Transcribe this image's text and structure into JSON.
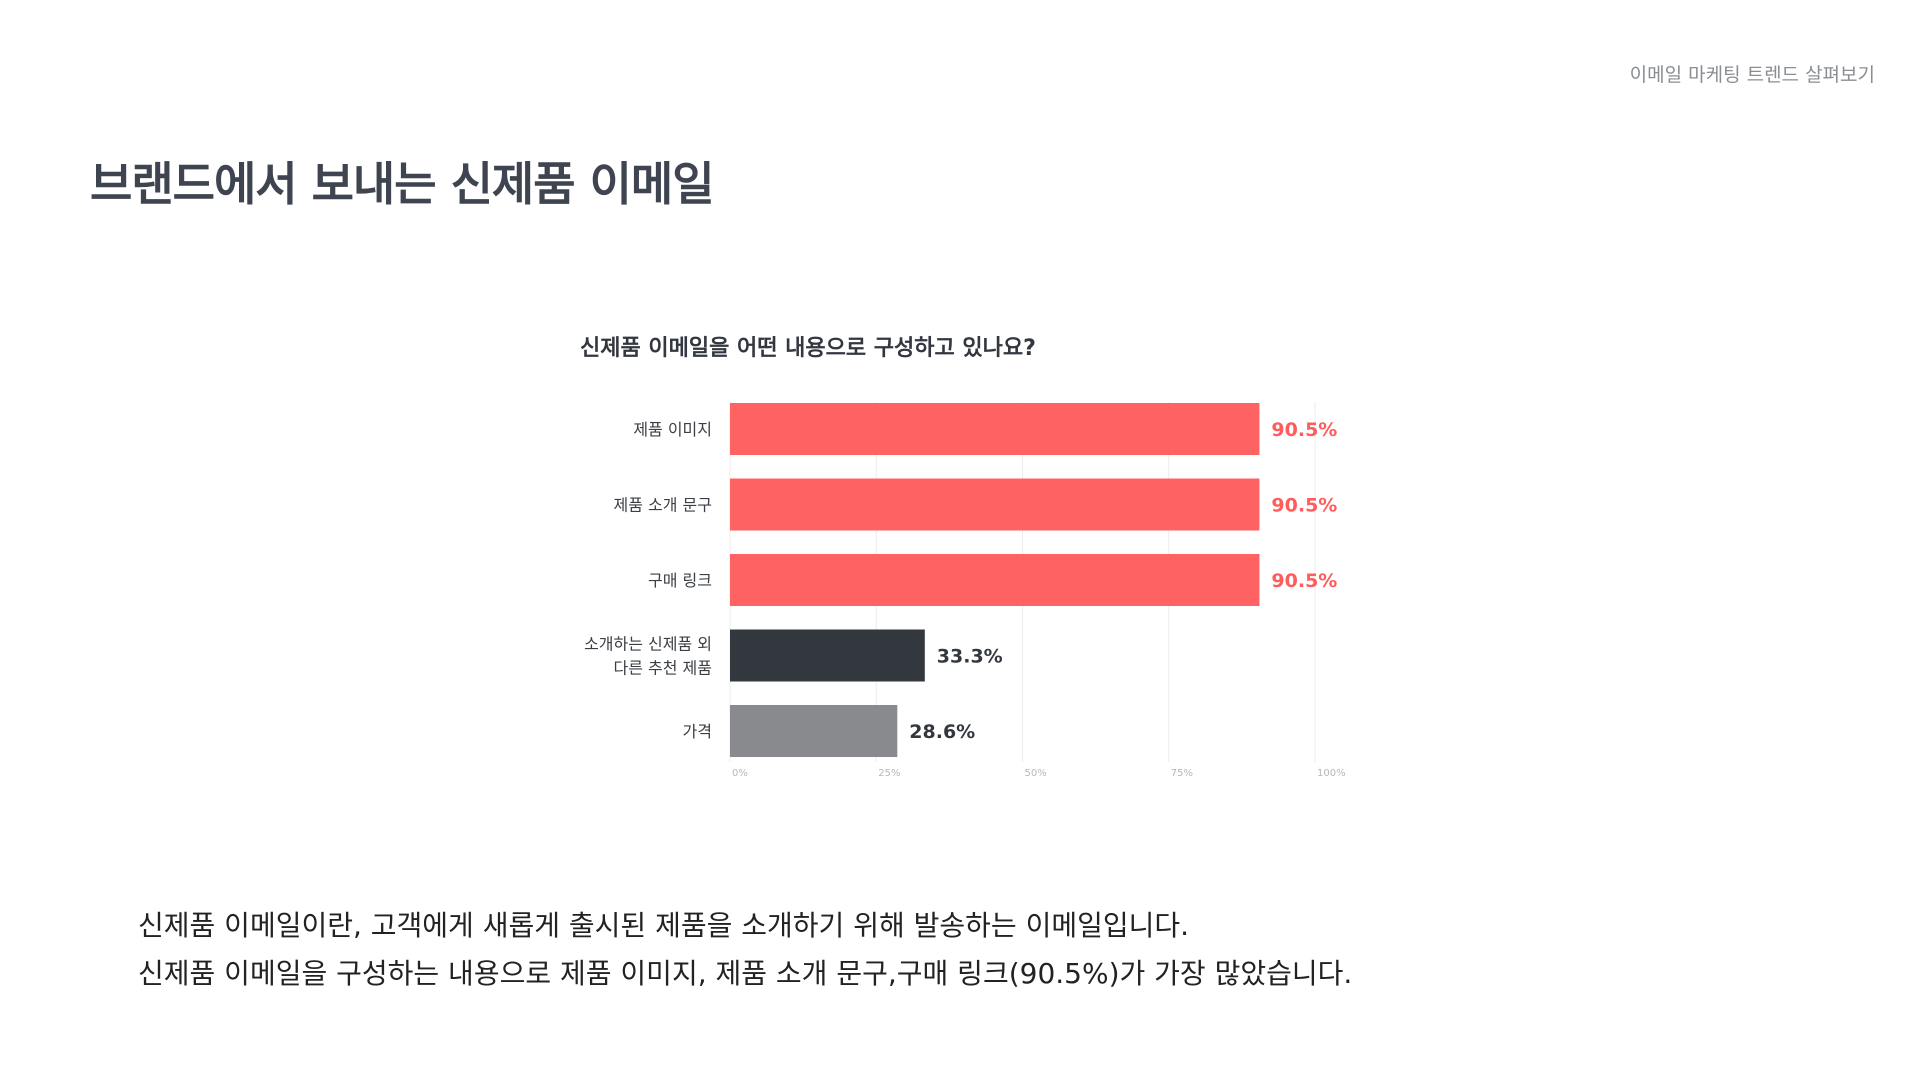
{
  "header": {
    "label": "이메일 마케팅 트렌드 살펴보기"
  },
  "page": {
    "title": "브랜드에서 보내는 신제품 이메일"
  },
  "description": {
    "line1": "신제품 이메일이란, 고객에게 새롭게 출시된 제품을 소개하기 위해 발송하는 이메일입니다.",
    "line2": "신제품 이메일을 구성하는 내용으로 제품 이미지, 제품 소개 문구,구매 링크(90.5%)가 가장 많았습니다."
  },
  "chart_data": {
    "type": "bar",
    "orientation": "horizontal",
    "title": "신제품 이메일을 어떤 내용으로 구성하고 있나요?",
    "categories": [
      [
        "제품 이미지"
      ],
      [
        "제품 소개 문구"
      ],
      [
        "구매 링크"
      ],
      [
        "소개하는 신제품 외",
        "다른 추천 제품"
      ],
      [
        "가격"
      ]
    ],
    "values": [
      90.5,
      90.5,
      90.5,
      33.3,
      28.6
    ],
    "value_labels": [
      "90.5%",
      "90.5%",
      "90.5%",
      "33.3%",
      "28.6%"
    ],
    "bar_colors": [
      "#ff6262",
      "#ff6262",
      "#ff6262",
      "#33373e",
      "#888a8d"
    ],
    "label_colors": [
      "#ff5c5c",
      "#ff5c5c",
      "#ff5c5c",
      "#33373e",
      "#33373e"
    ],
    "x_ticks": [
      "0%",
      "25%",
      "50%",
      "75%",
      "100%"
    ],
    "xlim": [
      0,
      100
    ],
    "grid": true,
    "legend": "none"
  }
}
